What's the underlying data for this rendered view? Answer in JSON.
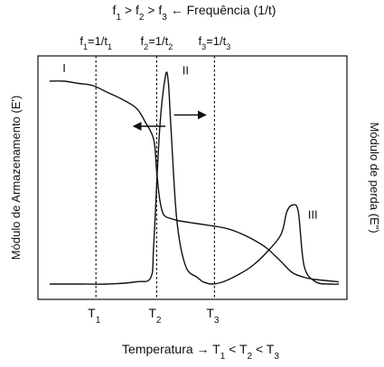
{
  "header": {
    "segments": [
      "f",
      "1",
      " > f",
      "2",
      " > f",
      "3",
      " ← Frequência (1/t)"
    ],
    "subscript_flags": [
      0,
      1,
      0,
      1,
      0,
      1,
      0
    ]
  },
  "chart_data": {
    "type": "line",
    "title": "",
    "xlabel": "Temperatura → T1 < T2 < T3",
    "xlabel_segments": [
      "Temperatura → T",
      "1",
      " < T",
      "2",
      " < T",
      "3"
    ],
    "ylabel": "Módulo de Armazenamento (E')",
    "ylabel_right": "Módulo de perda (E\")",
    "xlim": [
      0,
      100
    ],
    "ylim": [
      0,
      100
    ],
    "grid": false,
    "series": [
      {
        "name": "I",
        "x": [
          0,
          5,
          10,
          15,
          20,
          25,
          30,
          33,
          36,
          37,
          38,
          39,
          40,
          42,
          45,
          50,
          60,
          65,
          70,
          75,
          80,
          84,
          88,
          92,
          100
        ],
        "y": [
          92,
          92,
          91,
          90,
          87,
          84,
          80,
          74,
          66,
          52,
          40,
          34,
          32,
          31,
          30,
          29,
          27,
          25,
          22,
          18,
          12,
          7,
          5,
          4,
          3
        ]
      },
      {
        "name": "II",
        "x": [
          0,
          10,
          20,
          30,
          35,
          36,
          38,
          40,
          41,
          42,
          44,
          47,
          51,
          52,
          53,
          56,
          60,
          65,
          70,
          75,
          80,
          82,
          84,
          86,
          88,
          92,
          97,
          100
        ],
        "y": [
          2,
          2,
          2,
          3,
          5,
          20,
          70,
          94,
          92,
          70,
          30,
          10,
          5,
          4,
          3,
          2,
          3,
          6,
          10,
          16,
          24,
          34,
          37,
          34,
          10,
          3,
          2,
          2
        ]
      }
    ],
    "curve_labels": [
      {
        "text": "I",
        "x": 5,
        "y": 96
      },
      {
        "text": "II",
        "x": 47,
        "y": 95
      },
      {
        "text": "III",
        "x": 91,
        "y": 31
      }
    ],
    "vlines": [
      {
        "x": 16,
        "top_label": "f1=1/t1",
        "bottom_label": "T1",
        "top_segments": [
          "f",
          "1",
          "=1/t",
          "1"
        ],
        "bottom_segments": [
          "T",
          "1"
        ]
      },
      {
        "x": 37,
        "top_label": "f2=1/t2",
        "bottom_label": "T2",
        "top_segments": [
          "f",
          "2",
          "=1/t",
          "2"
        ],
        "bottom_segments": [
          "T",
          "2"
        ]
      },
      {
        "x": 57,
        "top_label": "f3=1/t3",
        "bottom_label": "T3",
        "top_segments": [
          "f",
          "3",
          "=1/t",
          "3"
        ],
        "bottom_segments": [
          "T",
          "3"
        ]
      }
    ],
    "arrows": [
      {
        "from": [
          40,
          72
        ],
        "to": [
          29,
          72
        ]
      },
      {
        "from": [
          43,
          77
        ],
        "to": [
          54,
          77
        ]
      }
    ]
  }
}
